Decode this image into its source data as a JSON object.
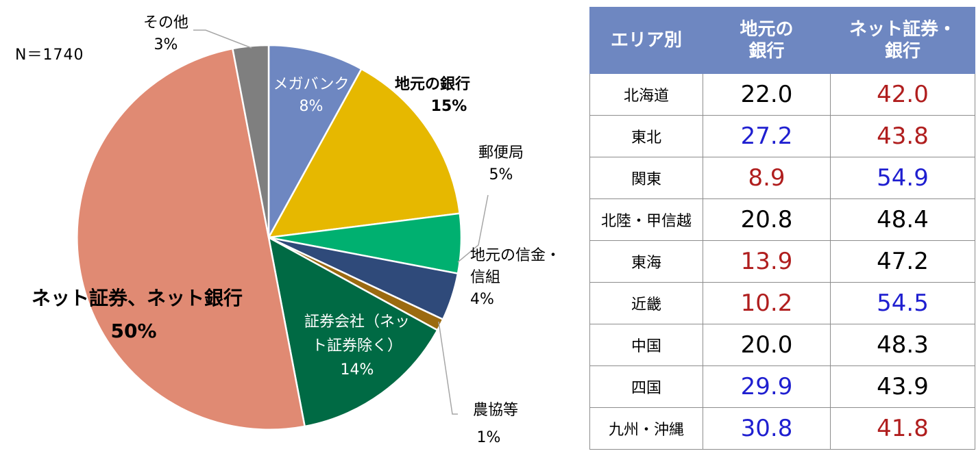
{
  "note": "N＝1740",
  "chart_data": {
    "type": "pie",
    "slices": [
      {
        "label": "メガバンク",
        "value": 8,
        "display": "8%",
        "color": "#6e87c1"
      },
      {
        "label": "地元の銀行",
        "value": 15,
        "display": "15%",
        "color": "#e6b800"
      },
      {
        "label": "郵便局",
        "value": 5,
        "display": "5%",
        "color": "#00b070"
      },
      {
        "label": "地元の信金・信組",
        "value": 4,
        "display": "4%",
        "color": "#2f4a7a"
      },
      {
        "label": "農協等",
        "value": 1,
        "display": "1%",
        "color": "#9b6a10"
      },
      {
        "label": "証券会社（ネット証券除く）",
        "value": 14,
        "display": "14%",
        "color": "#006a44"
      },
      {
        "label": "ネット証券、ネット銀行",
        "value": 50,
        "display": "50%",
        "color": "#e08a73"
      },
      {
        "label": "その他",
        "value": 3,
        "display": "3%",
        "color": "#7f7f7f"
      }
    ]
  },
  "labels": {
    "megabank": {
      "l1": "メガバンク",
      "pct": "8%"
    },
    "local_bank": {
      "l1": "地元の銀行",
      "pct": "15%"
    },
    "post": {
      "l1": "郵便局",
      "pct": "5%"
    },
    "shinkin": {
      "l1": "地元の信金・",
      "l2": "信組",
      "pct": "4%"
    },
    "nokyo": {
      "l1": "農協等",
      "pct": "1%"
    },
    "securities": {
      "l1": "証券会社（ネッ",
      "l2": "ト証券除く）",
      "pct": "14%"
    },
    "net": {
      "l1": "ネット証券、ネット銀行",
      "pct": "50%"
    },
    "other": {
      "l1": "その他",
      "pct": "3%"
    }
  },
  "table": {
    "headers": [
      "エリア別",
      "地元の\n銀行",
      "ネット証券・\n銀行"
    ],
    "rows": [
      {
        "area": "北海道",
        "local": "22.0",
        "local_color": "black",
        "net": "42.0",
        "net_color": "red"
      },
      {
        "area": "東北",
        "local": "27.2",
        "local_color": "blue",
        "net": "43.8",
        "net_color": "red"
      },
      {
        "area": "関東",
        "local": "8.9",
        "local_color": "red",
        "net": "54.9",
        "net_color": "blue"
      },
      {
        "area": "北陸・甲信越",
        "local": "20.8",
        "local_color": "black",
        "net": "48.4",
        "net_color": "black"
      },
      {
        "area": "東海",
        "local": "13.9",
        "local_color": "red",
        "net": "47.2",
        "net_color": "black"
      },
      {
        "area": "近畿",
        "local": "10.2",
        "local_color": "red",
        "net": "54.5",
        "net_color": "blue"
      },
      {
        "area": "中国",
        "local": "20.0",
        "local_color": "black",
        "net": "48.3",
        "net_color": "black"
      },
      {
        "area": "四国",
        "local": "29.9",
        "local_color": "blue",
        "net": "43.9",
        "net_color": "black"
      },
      {
        "area": "九州・沖縄",
        "local": "30.8",
        "local_color": "blue",
        "net": "41.8",
        "net_color": "red"
      }
    ]
  }
}
